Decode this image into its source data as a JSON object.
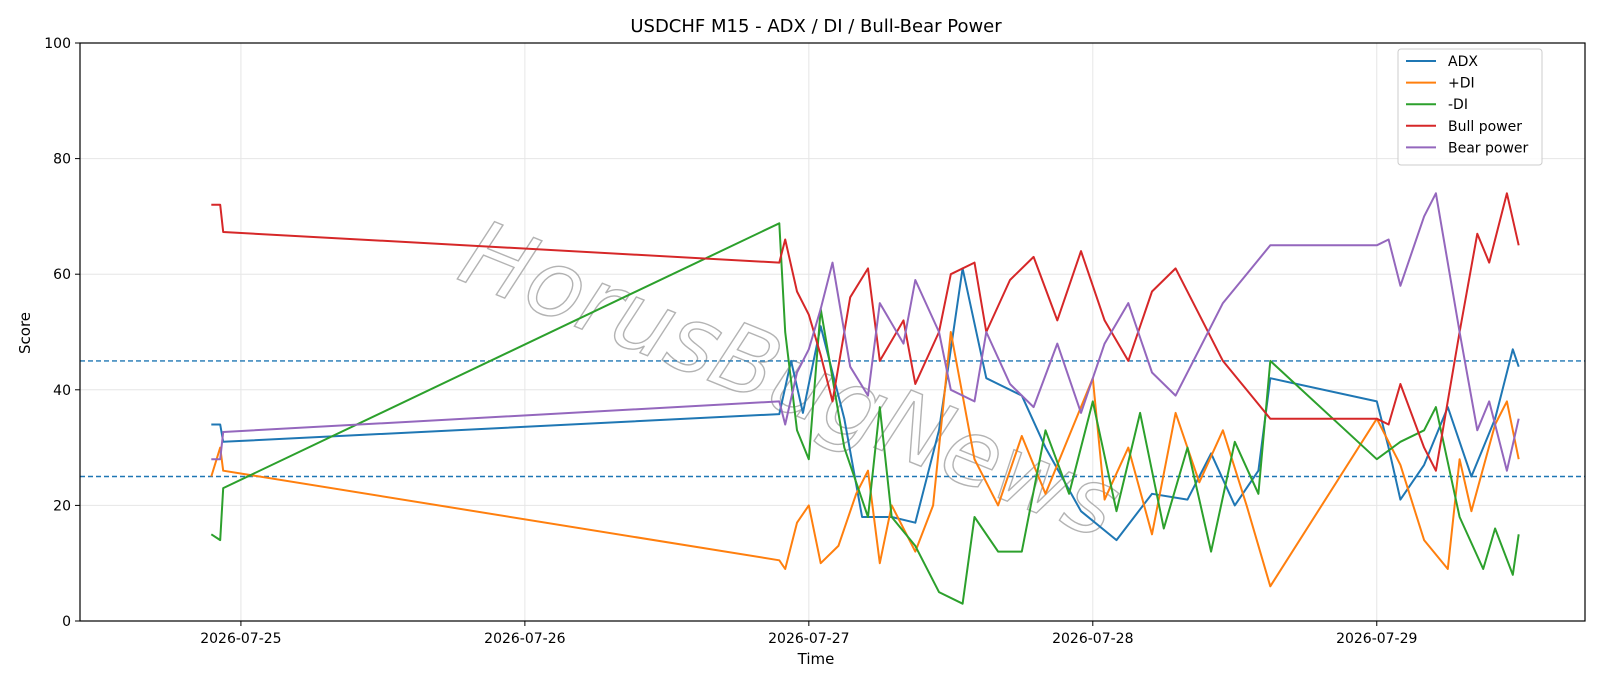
{
  "chart_data": {
    "type": "line",
    "title": "USDCHF M15 - ADX / DI / Bull-Bear Power",
    "xlabel": "Time",
    "ylabel": "Score",
    "ylim": [
      0,
      100
    ],
    "yticks": [
      0,
      20,
      40,
      60,
      80,
      100
    ],
    "xlim": [
      "2026-07-24T10:24",
      "2026-07-29T17:36"
    ],
    "xticks": [
      "2026-07-25",
      "2026-07-26",
      "2026-07-27",
      "2026-07-28",
      "2026-07-29"
    ],
    "grid": true,
    "legend_position": "top-right",
    "reference_lines": [
      {
        "y": 45,
        "style": "dashed",
        "color": "#1f77b4"
      },
      {
        "y": 25,
        "style": "dashed",
        "color": "#1f77b4"
      }
    ],
    "watermark": "HorusBugNews",
    "series": [
      {
        "name": "ADX",
        "color": "#1f77b4",
        "points": [
          [
            "2026-07-24T21:30",
            34
          ],
          [
            "2026-07-24T22:15",
            34
          ],
          [
            "2026-07-24T22:30",
            31
          ],
          [
            "2026-07-26T21:30",
            35.8
          ],
          [
            "2026-07-26T22:30",
            45
          ],
          [
            "2026-07-26T23:30",
            36
          ],
          [
            "2026-07-27T01:00",
            51
          ],
          [
            "2026-07-27T03:00",
            35
          ],
          [
            "2026-07-27T04:30",
            18
          ],
          [
            "2026-07-27T07:00",
            18
          ],
          [
            "2026-07-27T09:00",
            17
          ],
          [
            "2026-07-27T11:00",
            33
          ],
          [
            "2026-07-27T13:00",
            61
          ],
          [
            "2026-07-27T15:00",
            42
          ],
          [
            "2026-07-27T18:00",
            39
          ],
          [
            "2026-07-27T20:00",
            30
          ],
          [
            "2026-07-27T23:00",
            19
          ],
          [
            "2026-07-28T02:00",
            14
          ],
          [
            "2026-07-28T05:00",
            22
          ],
          [
            "2026-07-28T08:00",
            21
          ],
          [
            "2026-07-28T10:00",
            29
          ],
          [
            "2026-07-28T12:00",
            20
          ],
          [
            "2026-07-28T14:00",
            26
          ],
          [
            "2026-07-28T15:00",
            42
          ],
          [
            "2026-07-29T00:00",
            38
          ],
          [
            "2026-07-29T01:00",
            30
          ],
          [
            "2026-07-29T02:00",
            21
          ],
          [
            "2026-07-29T04:00",
            27
          ],
          [
            "2026-07-29T06:00",
            37
          ],
          [
            "2026-07-29T08:00",
            25
          ],
          [
            "2026-07-29T10:00",
            35
          ],
          [
            "2026-07-29T11:30",
            47
          ],
          [
            "2026-07-29T12:00",
            44
          ]
        ]
      },
      {
        "name": "+DI",
        "color": "#ff7f0e",
        "points": [
          [
            "2026-07-24T21:30",
            25
          ],
          [
            "2026-07-24T22:15",
            30
          ],
          [
            "2026-07-24T22:30",
            26
          ],
          [
            "2026-07-26T21:30",
            10.5
          ],
          [
            "2026-07-26T22:00",
            9
          ],
          [
            "2026-07-26T23:00",
            17
          ],
          [
            "2026-07-27T00:00",
            20
          ],
          [
            "2026-07-27T01:00",
            10
          ],
          [
            "2026-07-27T02:30",
            13
          ],
          [
            "2026-07-27T04:00",
            22
          ],
          [
            "2026-07-27T05:00",
            26
          ],
          [
            "2026-07-27T06:00",
            10
          ],
          [
            "2026-07-27T07:00",
            20
          ],
          [
            "2026-07-27T09:00",
            12
          ],
          [
            "2026-07-27T10:30",
            20
          ],
          [
            "2026-07-27T12:00",
            50
          ],
          [
            "2026-07-27T14:00",
            28
          ],
          [
            "2026-07-27T16:00",
            20
          ],
          [
            "2026-07-27T18:00",
            32
          ],
          [
            "2026-07-27T20:00",
            22
          ],
          [
            "2026-07-27T22:00",
            32
          ],
          [
            "2026-07-28T00:00",
            42
          ],
          [
            "2026-07-28T01:00",
            21
          ],
          [
            "2026-07-28T03:00",
            30
          ],
          [
            "2026-07-28T05:00",
            15
          ],
          [
            "2026-07-28T07:00",
            36
          ],
          [
            "2026-07-28T09:00",
            24
          ],
          [
            "2026-07-28T11:00",
            33
          ],
          [
            "2026-07-28T13:00",
            20
          ],
          [
            "2026-07-28T15:00",
            6
          ],
          [
            "2026-07-29T00:00",
            35
          ],
          [
            "2026-07-29T02:00",
            27
          ],
          [
            "2026-07-29T04:00",
            14
          ],
          [
            "2026-07-29T06:00",
            9
          ],
          [
            "2026-07-29T07:00",
            28
          ],
          [
            "2026-07-29T08:00",
            19
          ],
          [
            "2026-07-29T10:00",
            34
          ],
          [
            "2026-07-29T11:00",
            38
          ],
          [
            "2026-07-29T12:00",
            28
          ]
        ]
      },
      {
        "name": "-DI",
        "color": "#2ca02c",
        "points": [
          [
            "2026-07-24T21:30",
            15
          ],
          [
            "2026-07-24T22:15",
            14
          ],
          [
            "2026-07-24T22:30",
            23
          ],
          [
            "2026-07-26T21:30",
            68.8
          ],
          [
            "2026-07-26T22:00",
            50
          ],
          [
            "2026-07-26T23:00",
            33
          ],
          [
            "2026-07-27T00:00",
            28
          ],
          [
            "2026-07-27T01:00",
            54
          ],
          [
            "2026-07-27T03:00",
            30
          ],
          [
            "2026-07-27T05:00",
            18
          ],
          [
            "2026-07-27T06:00",
            37
          ],
          [
            "2026-07-27T07:00",
            18
          ],
          [
            "2026-07-27T09:00",
            13
          ],
          [
            "2026-07-27T11:00",
            5
          ],
          [
            "2026-07-27T13:00",
            3
          ],
          [
            "2026-07-27T14:00",
            18
          ],
          [
            "2026-07-27T16:00",
            12
          ],
          [
            "2026-07-27T18:00",
            12
          ],
          [
            "2026-07-27T20:00",
            33
          ],
          [
            "2026-07-27T22:00",
            22
          ],
          [
            "2026-07-28T00:00",
            38
          ],
          [
            "2026-07-28T02:00",
            19
          ],
          [
            "2026-07-28T04:00",
            36
          ],
          [
            "2026-07-28T06:00",
            16
          ],
          [
            "2026-07-28T08:00",
            30
          ],
          [
            "2026-07-28T10:00",
            12
          ],
          [
            "2026-07-28T12:00",
            31
          ],
          [
            "2026-07-28T14:00",
            22
          ],
          [
            "2026-07-28T15:00",
            45
          ],
          [
            "2026-07-29T00:00",
            28
          ],
          [
            "2026-07-29T02:00",
            31
          ],
          [
            "2026-07-29T04:00",
            33
          ],
          [
            "2026-07-29T05:00",
            37
          ],
          [
            "2026-07-29T07:00",
            18
          ],
          [
            "2026-07-29T09:00",
            9
          ],
          [
            "2026-07-29T10:00",
            16
          ],
          [
            "2026-07-29T11:30",
            8
          ],
          [
            "2026-07-29T12:00",
            15
          ]
        ]
      },
      {
        "name": "Bull power",
        "color": "#d62728",
        "points": [
          [
            "2026-07-24T21:30",
            72
          ],
          [
            "2026-07-24T22:15",
            72
          ],
          [
            "2026-07-24T22:30",
            67.3
          ],
          [
            "2026-07-26T21:30",
            62
          ],
          [
            "2026-07-26T22:00",
            66
          ],
          [
            "2026-07-26T23:00",
            57
          ],
          [
            "2026-07-27T00:00",
            53
          ],
          [
            "2026-07-27T01:00",
            46
          ],
          [
            "2026-07-27T02:00",
            38
          ],
          [
            "2026-07-27T03:30",
            56
          ],
          [
            "2026-07-27T05:00",
            61
          ],
          [
            "2026-07-27T06:00",
            45
          ],
          [
            "2026-07-27T08:00",
            52
          ],
          [
            "2026-07-27T09:00",
            41
          ],
          [
            "2026-07-27T11:00",
            50
          ],
          [
            "2026-07-27T12:00",
            60
          ],
          [
            "2026-07-27T14:00",
            62
          ],
          [
            "2026-07-27T15:00",
            50
          ],
          [
            "2026-07-27T17:00",
            59
          ],
          [
            "2026-07-27T19:00",
            63
          ],
          [
            "2026-07-27T21:00",
            52
          ],
          [
            "2026-07-27T23:00",
            64
          ],
          [
            "2026-07-28T01:00",
            52
          ],
          [
            "2026-07-28T03:00",
            45
          ],
          [
            "2026-07-28T05:00",
            57
          ],
          [
            "2026-07-28T07:00",
            61
          ],
          [
            "2026-07-28T09:00",
            53
          ],
          [
            "2026-07-28T11:00",
            45
          ],
          [
            "2026-07-28T13:00",
            40
          ],
          [
            "2026-07-28T15:00",
            35
          ],
          [
            "2026-07-29T00:00",
            35
          ],
          [
            "2026-07-29T01:00",
            34
          ],
          [
            "2026-07-29T02:00",
            41
          ],
          [
            "2026-07-29T04:00",
            30
          ],
          [
            "2026-07-29T05:00",
            26
          ],
          [
            "2026-07-29T07:00",
            50
          ],
          [
            "2026-07-29T08:30",
            67
          ],
          [
            "2026-07-29T09:30",
            62
          ],
          [
            "2026-07-29T11:00",
            74
          ],
          [
            "2026-07-29T12:00",
            65
          ]
        ]
      },
      {
        "name": "Bear power",
        "color": "#9467bd",
        "points": [
          [
            "2026-07-24T21:30",
            28
          ],
          [
            "2026-07-24T22:15",
            28
          ],
          [
            "2026-07-24T22:30",
            32.7
          ],
          [
            "2026-07-26T21:30",
            38
          ],
          [
            "2026-07-26T22:00",
            34
          ],
          [
            "2026-07-26T23:00",
            43
          ],
          [
            "2026-07-27T00:00",
            47
          ],
          [
            "2026-07-27T01:00",
            54
          ],
          [
            "2026-07-27T02:00",
            62
          ],
          [
            "2026-07-27T03:30",
            44
          ],
          [
            "2026-07-27T05:00",
            39
          ],
          [
            "2026-07-27T06:00",
            55
          ],
          [
            "2026-07-27T08:00",
            48
          ],
          [
            "2026-07-27T09:00",
            59
          ],
          [
            "2026-07-27T11:00",
            50
          ],
          [
            "2026-07-27T12:00",
            40
          ],
          [
            "2026-07-27T14:00",
            38
          ],
          [
            "2026-07-27T15:00",
            50
          ],
          [
            "2026-07-27T17:00",
            41
          ],
          [
            "2026-07-27T19:00",
            37
          ],
          [
            "2026-07-27T21:00",
            48
          ],
          [
            "2026-07-27T23:00",
            36
          ],
          [
            "2026-07-28T01:00",
            48
          ],
          [
            "2026-07-28T03:00",
            55
          ],
          [
            "2026-07-28T05:00",
            43
          ],
          [
            "2026-07-28T07:00",
            39
          ],
          [
            "2026-07-28T09:00",
            47
          ],
          [
            "2026-07-28T11:00",
            55
          ],
          [
            "2026-07-28T13:00",
            60
          ],
          [
            "2026-07-28T15:00",
            65
          ],
          [
            "2026-07-29T00:00",
            65
          ],
          [
            "2026-07-29T01:00",
            66
          ],
          [
            "2026-07-29T02:00",
            58
          ],
          [
            "2026-07-29T04:00",
            70
          ],
          [
            "2026-07-29T05:00",
            74
          ],
          [
            "2026-07-29T07:00",
            50
          ],
          [
            "2026-07-29T08:30",
            33
          ],
          [
            "2026-07-29T09:30",
            38
          ],
          [
            "2026-07-29T11:00",
            26
          ],
          [
            "2026-07-29T12:00",
            35
          ]
        ]
      }
    ]
  }
}
